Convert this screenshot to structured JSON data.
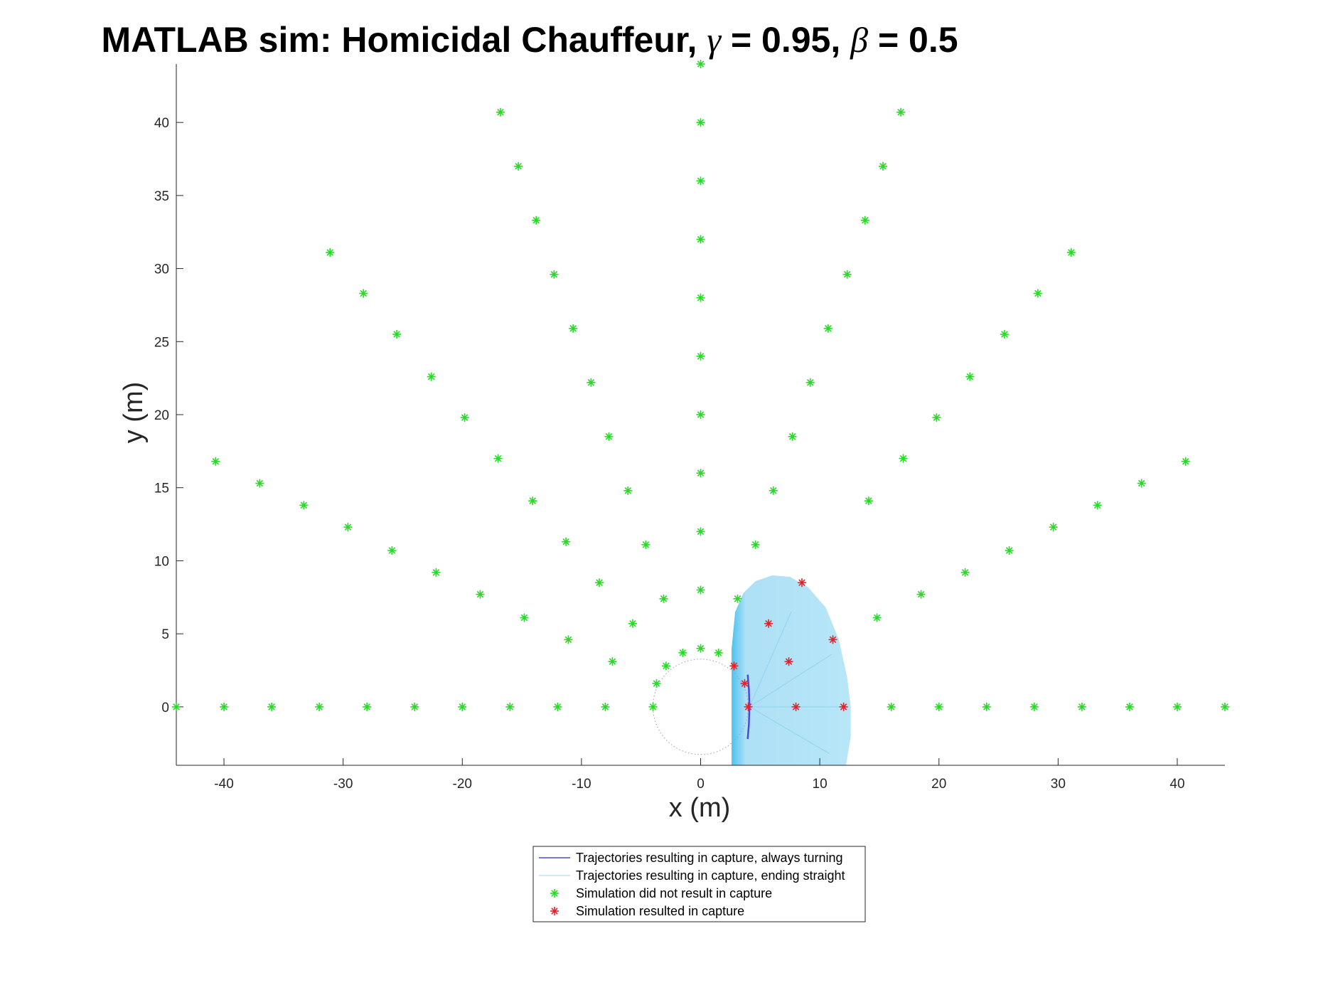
{
  "chart_data": {
    "type": "scatter",
    "title_parts": [
      "MATLAB sim: Homicidal Chauffeur, ",
      "γ",
      " = 0.95, ",
      "β",
      " = 0.5"
    ],
    "xlabel": "x (m)",
    "ylabel": "y (m)",
    "xlim": [
      -44,
      44
    ],
    "ylim": [
      -4,
      44
    ],
    "x_ticks": [
      -40,
      -30,
      -20,
      -10,
      0,
      10,
      20,
      30,
      40
    ],
    "y_ticks": [
      0,
      5,
      10,
      15,
      20,
      25,
      30,
      35,
      40
    ],
    "grid": false,
    "legend_position": "bottom-center",
    "colors": {
      "no_capture": "#22dd22",
      "capture": "#e5202a",
      "always_turning": "#4a4ad6",
      "ending_straight": "#b7e6f7",
      "axis": "#262626"
    },
    "series": [
      {
        "name": "Trajectories resulting in capture, always turning",
        "kind": "line",
        "points": [
          [
            3.95,
            2.2
          ],
          [
            4.05,
            1.2
          ],
          [
            4.1,
            0
          ],
          [
            4.05,
            -1.2
          ],
          [
            3.95,
            -2.2
          ]
        ]
      },
      {
        "name": "Trajectories resulting in capture, ending straight",
        "kind": "region",
        "points": [
          [
            2.6,
            -4
          ],
          [
            2.6,
            4
          ],
          [
            2.9,
            6.5
          ],
          [
            3.6,
            7.8
          ],
          [
            4.6,
            8.6
          ],
          [
            6.0,
            9.0
          ],
          [
            7.5,
            8.9
          ],
          [
            9.0,
            8.2
          ],
          [
            10.5,
            6.8
          ],
          [
            11.6,
            4.6
          ],
          [
            12.3,
            2.0
          ],
          [
            12.6,
            0
          ],
          [
            12.6,
            -2.0
          ],
          [
            12.2,
            -4
          ],
          [
            2.6,
            -4
          ]
        ]
      },
      {
        "name": "Simulation did not result in capture",
        "kind": "marker",
        "points": [
          [
            -44,
            0
          ],
          [
            -40,
            0
          ],
          [
            -36,
            0
          ],
          [
            -32,
            0
          ],
          [
            -28,
            0
          ],
          [
            -24,
            0
          ],
          [
            -20,
            0
          ],
          [
            -16,
            0
          ],
          [
            -12,
            0
          ],
          [
            -8,
            0
          ],
          [
            -4,
            0
          ],
          [
            16,
            0
          ],
          [
            20,
            0
          ],
          [
            24,
            0
          ],
          [
            28,
            0
          ],
          [
            32,
            0
          ],
          [
            36,
            0
          ],
          [
            40,
            0
          ],
          [
            44,
            0
          ],
          [
            0,
            4
          ],
          [
            0,
            8
          ],
          [
            0,
            12
          ],
          [
            0,
            16
          ],
          [
            0,
            20
          ],
          [
            0,
            24
          ],
          [
            0,
            28
          ],
          [
            0,
            32
          ],
          [
            0,
            36
          ],
          [
            0,
            40
          ],
          [
            0,
            44
          ],
          [
            -3.7,
            1.6
          ],
          [
            -7.4,
            3.1
          ],
          [
            -11.1,
            4.6
          ],
          [
            -14.8,
            6.1
          ],
          [
            -18.5,
            7.7
          ],
          [
            -22.2,
            9.2
          ],
          [
            -25.9,
            10.7
          ],
          [
            -29.6,
            12.3
          ],
          [
            -33.3,
            13.8
          ],
          [
            -37.0,
            15.3
          ],
          [
            -40.7,
            16.8
          ],
          [
            -2.9,
            2.8
          ],
          [
            -5.7,
            5.7
          ],
          [
            -8.5,
            8.5
          ],
          [
            -11.3,
            11.3
          ],
          [
            -14.1,
            14.1
          ],
          [
            -17.0,
            17.0
          ],
          [
            -19.8,
            19.8
          ],
          [
            -22.6,
            22.6
          ],
          [
            -25.5,
            25.5
          ],
          [
            -28.3,
            28.3
          ],
          [
            -31.1,
            31.1
          ],
          [
            -1.5,
            3.7
          ],
          [
            -3.1,
            7.4
          ],
          [
            -4.6,
            11.1
          ],
          [
            -6.1,
            14.8
          ],
          [
            -7.7,
            18.5
          ],
          [
            -9.2,
            22.2
          ],
          [
            -10.7,
            25.9
          ],
          [
            -12.3,
            29.6
          ],
          [
            -13.8,
            33.3
          ],
          [
            -15.3,
            37.0
          ],
          [
            -16.8,
            40.7
          ],
          [
            1.5,
            3.7
          ],
          [
            3.1,
            7.4
          ],
          [
            4.6,
            11.1
          ],
          [
            6.1,
            14.8
          ],
          [
            7.7,
            18.5
          ],
          [
            9.2,
            22.2
          ],
          [
            10.7,
            25.9
          ],
          [
            12.3,
            29.6
          ],
          [
            13.8,
            33.3
          ],
          [
            15.3,
            37.0
          ],
          [
            16.8,
            40.7
          ],
          [
            14.1,
            14.1
          ],
          [
            17.0,
            17.0
          ],
          [
            19.8,
            19.8
          ],
          [
            22.6,
            22.6
          ],
          [
            25.5,
            25.5
          ],
          [
            28.3,
            28.3
          ],
          [
            31.1,
            31.1
          ],
          [
            14.8,
            6.1
          ],
          [
            18.5,
            7.7
          ],
          [
            22.2,
            9.2
          ],
          [
            25.9,
            10.7
          ],
          [
            29.6,
            12.3
          ],
          [
            33.3,
            13.8
          ],
          [
            37.0,
            15.3
          ],
          [
            40.7,
            16.8
          ]
        ]
      },
      {
        "name": "Simulation resulted in capture",
        "kind": "marker",
        "points": [
          [
            4,
            0
          ],
          [
            8,
            0
          ],
          [
            12,
            0
          ],
          [
            3.7,
            1.6
          ],
          [
            7.4,
            3.1
          ],
          [
            11.1,
            4.6
          ],
          [
            2.8,
            2.8
          ],
          [
            5.7,
            5.7
          ],
          [
            8.5,
            8.5
          ]
        ]
      }
    ],
    "dotted_circle": {
      "center": [
        0,
        0
      ],
      "radius": 4
    }
  }
}
